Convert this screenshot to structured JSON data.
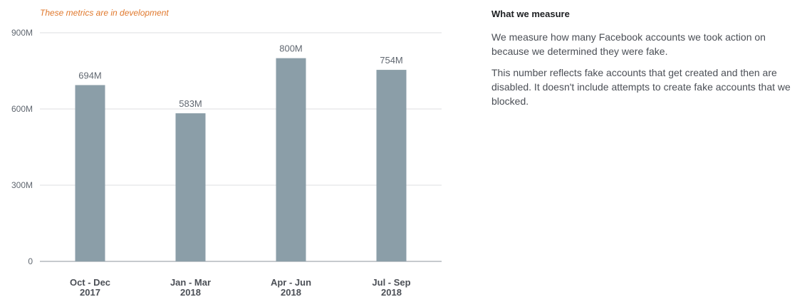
{
  "notice": "These metrics are in development",
  "chart_data": {
    "type": "bar",
    "categories": [
      [
        "Oct - Dec",
        "2017"
      ],
      [
        "Jan - Mar",
        "2018"
      ],
      [
        "Apr - Jun",
        "2018"
      ],
      [
        "Jul - Sep",
        "2018"
      ]
    ],
    "values": [
      694,
      583,
      800,
      754
    ],
    "value_labels": [
      "694M",
      "583M",
      "800M",
      "754M"
    ],
    "unit": "M",
    "yticks": [
      0,
      300,
      600,
      900
    ],
    "ytick_labels": [
      "0",
      "300M",
      "600M",
      "900M"
    ],
    "ylim": [
      0,
      900
    ],
    "grid": true,
    "bar_color": "#8b9ea8"
  },
  "sidebar": {
    "heading": "What we measure",
    "paragraphs": [
      "We measure how many Facebook accounts we took action on because we determined they were fake.",
      "This number reflects fake accounts that get created and then are disabled. It doesn't include attempts to create fake accounts that we blocked."
    ]
  }
}
